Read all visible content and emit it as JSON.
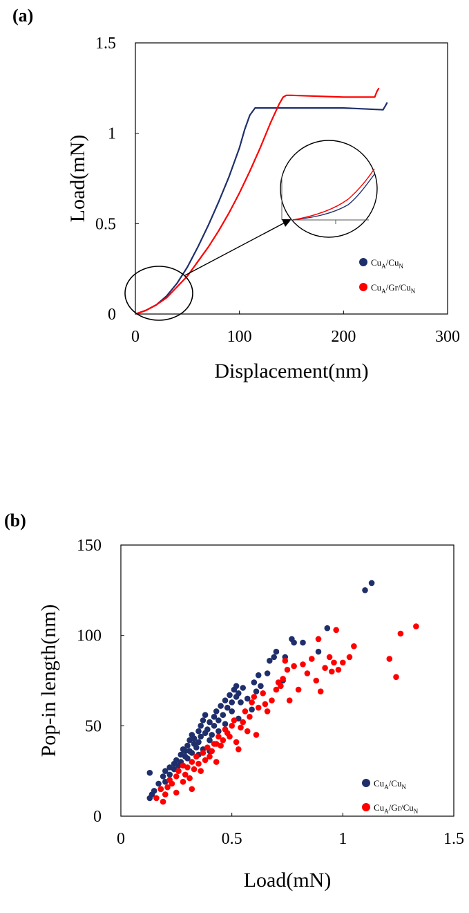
{
  "panels": {
    "a": "(a)",
    "b": "(b)"
  },
  "legend": {
    "cu": {
      "base": "Cu",
      "s1": "A",
      "mid": "/Cu",
      "s2": "N"
    },
    "cugr": {
      "base": "Cu",
      "s1": "A",
      "mid": "/Gr/Cu",
      "s2": "N"
    }
  },
  "colors": {
    "blue": "#1f2f6b",
    "red": "#ff0000"
  },
  "chart_data": [
    {
      "type": "line",
      "panel": "(a)",
      "xlabel": "Displacement(nm)",
      "ylabel": "Load(mN)",
      "xlim": [
        0,
        300
      ],
      "ylim": [
        0,
        1.5
      ],
      "xticks": [
        "0",
        "100",
        "200",
        "300"
      ],
      "yticks": [
        "0",
        "0.5",
        "1",
        "1.5"
      ],
      "annotation": "zoom-in inset of the initial loading region (0–45 nm)",
      "series": [
        {
          "name": "CuA/CuN",
          "color": "#1f2f6b",
          "x": [
            0,
            10,
            20,
            30,
            40,
            50,
            60,
            70,
            80,
            90,
            100,
            105,
            110,
            115,
            150,
            200,
            238,
            240,
            241,
            242
          ],
          "y": [
            0,
            0.02,
            0.05,
            0.1,
            0.17,
            0.26,
            0.37,
            0.49,
            0.62,
            0.76,
            0.92,
            1.02,
            1.1,
            1.14,
            1.14,
            1.14,
            1.13,
            1.15,
            1.16,
            1.17
          ]
        },
        {
          "name": "CuA/Gr/CuN",
          "color": "#ff0000",
          "x": [
            0,
            10,
            20,
            30,
            40,
            50,
            60,
            70,
            80,
            90,
            100,
            110,
            120,
            130,
            138,
            142,
            145,
            150,
            200,
            230,
            232,
            234
          ],
          "y": [
            0,
            0.02,
            0.05,
            0.09,
            0.15,
            0.21,
            0.29,
            0.37,
            0.46,
            0.56,
            0.67,
            0.79,
            0.92,
            1.06,
            1.16,
            1.2,
            1.21,
            1.21,
            1.2,
            1.2,
            1.23,
            1.25
          ]
        }
      ]
    },
    {
      "type": "scatter",
      "panel": "(b)",
      "xlabel": "Load(mN)",
      "ylabel": "Pop-in length(nm)",
      "xlim": [
        0,
        1.5
      ],
      "ylim": [
        0,
        150
      ],
      "xticks": [
        "0",
        "0.5",
        "1",
        "1.5"
      ],
      "yticks": [
        "0",
        "50",
        "100",
        "150"
      ],
      "series": [
        {
          "name": "CuA/CuN",
          "color": "#1f2f6b",
          "points": [
            [
              0.13,
              10
            ],
            [
              0.14,
              12
            ],
            [
              0.13,
              24
            ],
            [
              0.15,
              14
            ],
            [
              0.17,
              18
            ],
            [
              0.18,
              15
            ],
            [
              0.19,
              22
            ],
            [
              0.2,
              19
            ],
            [
              0.2,
              25
            ],
            [
              0.22,
              23
            ],
            [
              0.22,
              27
            ],
            [
              0.24,
              26
            ],
            [
              0.24,
              29
            ],
            [
              0.25,
              31
            ],
            [
              0.26,
              28
            ],
            [
              0.27,
              34
            ],
            [
              0.27,
              30
            ],
            [
              0.28,
              37
            ],
            [
              0.29,
              33
            ],
            [
              0.29,
              36
            ],
            [
              0.3,
              32
            ],
            [
              0.3,
              39
            ],
            [
              0.31,
              42
            ],
            [
              0.31,
              36
            ],
            [
              0.32,
              45
            ],
            [
              0.32,
              35
            ],
            [
              0.33,
              40
            ],
            [
              0.33,
              43
            ],
            [
              0.34,
              38
            ],
            [
              0.35,
              47
            ],
            [
              0.35,
              41
            ],
            [
              0.36,
              50
            ],
            [
              0.36,
              44
            ],
            [
              0.37,
              37
            ],
            [
              0.37,
              53
            ],
            [
              0.38,
              46
            ],
            [
              0.38,
              56
            ],
            [
              0.39,
              48
            ],
            [
              0.4,
              42
            ],
            [
              0.4,
              52
            ],
            [
              0.41,
              45
            ],
            [
              0.42,
              55
            ],
            [
              0.42,
              50
            ],
            [
              0.43,
              58
            ],
            [
              0.44,
              47
            ],
            [
              0.44,
              53
            ],
            [
              0.45,
              61
            ],
            [
              0.46,
              56
            ],
            [
              0.47,
              51
            ],
            [
              0.47,
              64
            ],
            [
              0.48,
              60
            ],
            [
              0.49,
              67
            ],
            [
              0.5,
              63
            ],
            [
              0.5,
              58
            ],
            [
              0.51,
              70
            ],
            [
              0.52,
              66
            ],
            [
              0.52,
              72
            ],
            [
              0.53,
              68
            ],
            [
              0.54,
              63
            ],
            [
              0.55,
              71
            ],
            [
              0.57,
              65
            ],
            [
              0.59,
              59
            ],
            [
              0.6,
              74
            ],
            [
              0.61,
              69
            ],
            [
              0.62,
              78
            ],
            [
              0.63,
              72
            ],
            [
              0.66,
              79
            ],
            [
              0.67,
              86
            ],
            [
              0.69,
              88
            ],
            [
              0.7,
              91
            ],
            [
              0.73,
              75
            ],
            [
              0.74,
              88
            ],
            [
              0.77,
              98
            ],
            [
              0.78,
              96
            ],
            [
              0.82,
              96
            ],
            [
              0.89,
              91
            ],
            [
              0.93,
              104
            ],
            [
              1.1,
              125
            ],
            [
              1.13,
              129
            ],
            [
              0.53,
              54
            ],
            [
              0.35,
              34
            ],
            [
              0.4,
              36
            ]
          ]
        },
        {
          "name": "CuA/Gr/CuN",
          "color": "#ff0000",
          "points": [
            [
              0.16,
              10
            ],
            [
              0.18,
              15
            ],
            [
              0.19,
              8
            ],
            [
              0.2,
              12
            ],
            [
              0.21,
              16
            ],
            [
              0.22,
              20
            ],
            [
              0.23,
              18
            ],
            [
              0.25,
              13
            ],
            [
              0.25,
              22
            ],
            [
              0.26,
              25
            ],
            [
              0.28,
              19
            ],
            [
              0.28,
              28
            ],
            [
              0.29,
              23
            ],
            [
              0.3,
              27
            ],
            [
              0.31,
              21
            ],
            [
              0.32,
              15
            ],
            [
              0.32,
              30
            ],
            [
              0.33,
              26
            ],
            [
              0.34,
              33
            ],
            [
              0.35,
              29
            ],
            [
              0.36,
              25
            ],
            [
              0.37,
              35
            ],
            [
              0.38,
              31
            ],
            [
              0.39,
              38
            ],
            [
              0.4,
              33
            ],
            [
              0.41,
              36
            ],
            [
              0.42,
              40
            ],
            [
              0.43,
              30
            ],
            [
              0.44,
              44
            ],
            [
              0.45,
              39
            ],
            [
              0.46,
              42
            ],
            [
              0.47,
              48
            ],
            [
              0.48,
              46
            ],
            [
              0.49,
              44
            ],
            [
              0.5,
              50
            ],
            [
              0.51,
              53
            ],
            [
              0.52,
              41
            ],
            [
              0.53,
              37
            ],
            [
              0.54,
              49
            ],
            [
              0.55,
              52
            ],
            [
              0.56,
              58
            ],
            [
              0.57,
              47
            ],
            [
              0.58,
              55
            ],
            [
              0.59,
              63
            ],
            [
              0.6,
              66
            ],
            [
              0.61,
              45
            ],
            [
              0.62,
              60
            ],
            [
              0.64,
              68
            ],
            [
              0.65,
              62
            ],
            [
              0.66,
              58
            ],
            [
              0.68,
              64
            ],
            [
              0.7,
              70
            ],
            [
              0.71,
              74
            ],
            [
              0.72,
              72
            ],
            [
              0.73,
              76
            ],
            [
              0.74,
              86
            ],
            [
              0.75,
              81
            ],
            [
              0.76,
              64
            ],
            [
              0.78,
              83
            ],
            [
              0.8,
              70
            ],
            [
              0.82,
              84
            ],
            [
              0.84,
              79
            ],
            [
              0.86,
              87
            ],
            [
              0.88,
              75
            ],
            [
              0.89,
              98
            ],
            [
              0.9,
              69
            ],
            [
              0.92,
              82
            ],
            [
              0.94,
              88
            ],
            [
              0.95,
              80
            ],
            [
              0.96,
              85
            ],
            [
              0.97,
              103
            ],
            [
              0.98,
              81
            ],
            [
              1.0,
              85
            ],
            [
              1.03,
              88
            ],
            [
              1.05,
              94
            ],
            [
              1.21,
              87
            ],
            [
              1.24,
              77
            ],
            [
              1.26,
              101
            ],
            [
              1.33,
              105
            ],
            [
              0.43,
              40
            ]
          ]
        }
      ]
    }
  ]
}
